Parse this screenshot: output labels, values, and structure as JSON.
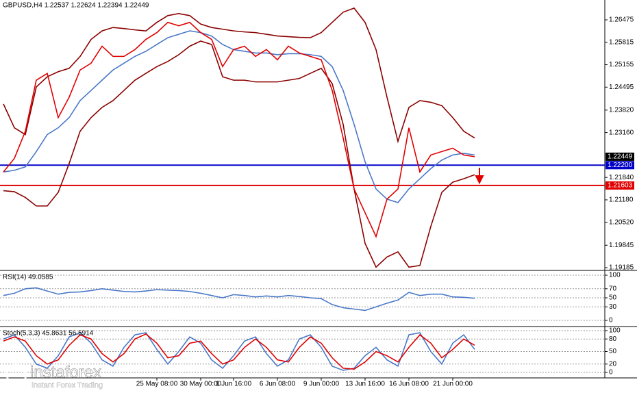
{
  "chart_data": [
    {
      "type": "line",
      "title": "GBPUSD,H4  1.22537 1.22624 1.22394 1.22449",
      "categories": [
        null,
        null,
        null,
        null,
        null,
        null,
        null,
        null,
        null,
        null,
        null,
        null,
        null,
        null,
        "25 May 08:00",
        null,
        null,
        null,
        "30 May 00:00",
        null,
        null,
        "1 Jun 16:00",
        null,
        null,
        null,
        "6 Jun 08:00",
        null,
        null,
        null,
        "9 Jun 00:00",
        null,
        null,
        null,
        "13 Jun 16:00",
        null,
        null,
        null,
        "16 Jun 08:00",
        null,
        null,
        null,
        "21 Jun 00:00",
        null,
        null
      ],
      "series": [
        {
          "color": "#8b0000",
          "values": [
            1.24,
            1.233,
            1.231,
            1.245,
            1.248,
            1.2495,
            1.2505,
            1.254,
            1.259,
            1.2615,
            1.2625,
            1.2622,
            1.2618,
            1.2615,
            1.264,
            1.266,
            1.2666,
            1.266,
            1.2635,
            1.2625,
            1.262,
            1.2615,
            1.2612,
            1.261,
            1.2605,
            1.26,
            1.2598,
            1.2596,
            1.2595,
            1.261,
            1.264,
            1.267,
            1.2682,
            1.264,
            1.256,
            1.242,
            1.229,
            1.239,
            1.241,
            1.2405,
            1.2395,
            1.236,
            1.232,
            1.23
          ]
        },
        {
          "color": "#8b0000",
          "values": [
            1.2145,
            1.2142,
            1.2125,
            1.21,
            1.21,
            1.214,
            1.2225,
            1.232,
            1.236,
            1.239,
            1.241,
            1.244,
            1.247,
            1.249,
            1.251,
            1.2525,
            1.2545,
            1.257,
            1.2585,
            1.2575,
            1.248,
            1.247,
            1.247,
            1.2465,
            1.2465,
            1.2465,
            1.247,
            1.2475,
            1.249,
            1.2505,
            1.246,
            1.234,
            1.215,
            1.199,
            1.192,
            1.195,
            1.1965,
            1.192,
            1.1925,
            1.204,
            1.214,
            1.217,
            1.218,
            1.2192
          ]
        },
        {
          "color": "#4a78c8",
          "values": [
            1.22,
            1.2205,
            1.2215,
            1.226,
            1.231,
            1.233,
            1.236,
            1.241,
            1.244,
            1.247,
            1.25,
            1.252,
            1.254,
            1.2555,
            1.2575,
            1.2595,
            1.2605,
            1.2615,
            1.261,
            1.26,
            1.2575,
            1.256,
            1.2555,
            1.255,
            1.255,
            1.2545,
            1.2548,
            1.2548,
            1.2545,
            1.254,
            1.251,
            1.244,
            1.234,
            1.223,
            1.215,
            1.212,
            1.211,
            1.215,
            1.218,
            1.221,
            1.2235,
            1.225,
            1.2255,
            1.225
          ]
        },
        {
          "color": "#e00000",
          "values": [
            1.22,
            1.224,
            1.232,
            1.247,
            1.249,
            1.236,
            1.242,
            1.25,
            1.252,
            1.257,
            1.254,
            1.254,
            1.256,
            1.259,
            1.261,
            1.264,
            1.263,
            1.264,
            1.261,
            1.259,
            1.251,
            1.256,
            1.257,
            1.254,
            1.256,
            1.253,
            1.257,
            1.255,
            1.254,
            1.253,
            1.244,
            1.23,
            1.215,
            1.208,
            1.201,
            1.212,
            1.215,
            1.233,
            1.22,
            1.225,
            1.226,
            1.227,
            1.225,
            1.2245
          ]
        }
      ],
      "levels": [
        {
          "value": 1.222,
          "label": "1.22200",
          "color": "#0000c8"
        },
        {
          "value": 1.21603,
          "label": "1.21603",
          "color": "#e00000"
        }
      ],
      "last_price": {
        "value": 1.22449,
        "label": "1.22449"
      },
      "ylim": [
        1.19145,
        1.26958
      ],
      "yticks": [
        1.26475,
        1.25815,
        1.25155,
        1.24495,
        {
          "value": 1.2382,
          "label": "1.23820"
        },
        {
          "value": 1.2316,
          "label": "1.23160"
        },
        {
          "value": 1.2184,
          "label": "1.21840"
        },
        {
          "value": 1.2118,
          "label": "1.21180"
        },
        {
          "value": 1.2052,
          "label": "1.20520"
        },
        1.19845,
        1.19185
      ],
      "grid": false
    },
    {
      "type": "line",
      "title": "RSI(14) 49.0585",
      "series": [
        {
          "color": "#4a78c8",
          "values": [
            55,
            60,
            70,
            72,
            65,
            58,
            62,
            63,
            66,
            70,
            67,
            64,
            63,
            65,
            68,
            67,
            66,
            64,
            60,
            55,
            50,
            57,
            55,
            52,
            54,
            52,
            55,
            53,
            50,
            48,
            35,
            28,
            25,
            22,
            30,
            38,
            45,
            62,
            55,
            58,
            58,
            52,
            51,
            49
          ]
        }
      ],
      "ylim": [
        0,
        100
      ],
      "yticks": [
        0,
        30,
        50,
        70,
        100
      ],
      "grid": true
    },
    {
      "type": "line",
      "title": "Stoch(5,3,3) 45.8631 56.5914",
      "series": [
        {
          "color": "#4a78c8",
          "values": [
            80,
            90,
            60,
            20,
            10,
            40,
            85,
            95,
            70,
            30,
            15,
            60,
            90,
            95,
            55,
            20,
            50,
            85,
            70,
            30,
            10,
            40,
            75,
            85,
            45,
            15,
            30,
            80,
            90,
            60,
            15,
            5,
            10,
            40,
            60,
            30,
            15,
            90,
            95,
            50,
            20,
            70,
            90,
            55
          ]
        },
        {
          "color": "#e00000",
          "values": [
            75,
            85,
            75,
            40,
            20,
            30,
            65,
            90,
            80,
            45,
            25,
            45,
            80,
            92,
            70,
            35,
            40,
            70,
            75,
            45,
            20,
            30,
            60,
            80,
            60,
            30,
            25,
            60,
            85,
            70,
            35,
            10,
            8,
            25,
            50,
            40,
            25,
            60,
            90,
            70,
            35,
            55,
            80,
            65
          ]
        }
      ],
      "ylim": [
        0,
        100
      ],
      "yticks": [
        0,
        20,
        50,
        80,
        100
      ],
      "grid": true
    }
  ],
  "logo": {
    "name": "instaforex",
    "tagline": "Instant Forex Trading"
  }
}
